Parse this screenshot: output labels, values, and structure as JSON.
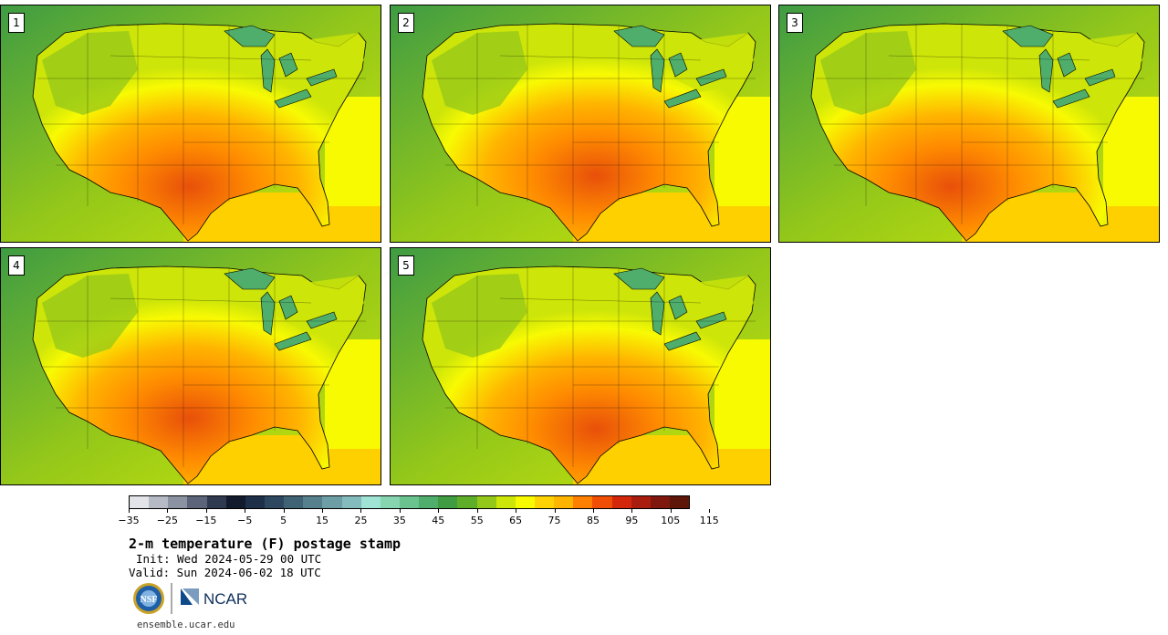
{
  "panels": [
    {
      "label": "1"
    },
    {
      "label": "2"
    },
    {
      "label": "3"
    },
    {
      "label": "4"
    },
    {
      "label": "5"
    }
  ],
  "colorbar": {
    "colors": [
      "#e3e4ea",
      "#b6bac4",
      "#8b93a3",
      "#5b6478",
      "#2f3a50",
      "#111b2d",
      "#1e3049",
      "#2c475f",
      "#3f6275",
      "#56808d",
      "#6d9ea5",
      "#84bbbd",
      "#9ee3d3",
      "#86d4b0",
      "#6ac28e",
      "#4fae6b",
      "#3f9c43",
      "#5fae29",
      "#93c71a",
      "#cde509",
      "#f8fa02",
      "#fed203",
      "#ffb400",
      "#ff7f00",
      "#f04d05",
      "#d3260a",
      "#a81d0e",
      "#80170e",
      "#5e1608"
    ],
    "tick_labels": [
      "−35",
      "−25",
      "−15",
      "−5",
      "5",
      "15",
      "25",
      "35",
      "45",
      "55",
      "65",
      "75",
      "85",
      "95",
      "105",
      "115"
    ]
  },
  "title": "2-m temperature (F) postage stamp",
  "init": "Init: Wed 2024-05-29 00 UTC",
  "valid": "Valid: Sun 2024-06-02 18 UTC",
  "logos": {
    "nsf": "NSF",
    "ncar": "NCAR"
  },
  "site": "ensemble.ucar.edu"
}
